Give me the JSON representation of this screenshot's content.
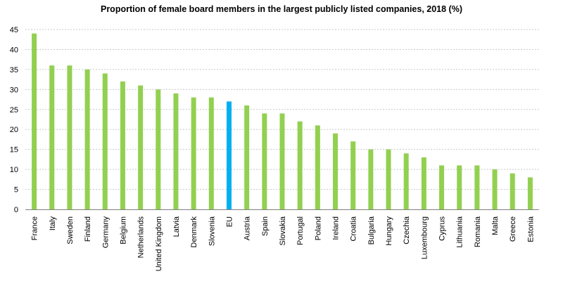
{
  "chart_data": {
    "type": "bar",
    "title": "Proportion of female board members in the largest publicly listed companies, 2018 (%)",
    "xlabel": "",
    "ylabel": "",
    "ylim": [
      0,
      45
    ],
    "yticks": [
      0,
      5,
      10,
      15,
      20,
      25,
      30,
      35,
      40,
      45
    ],
    "grid": true,
    "categories": [
      "France",
      "Italy",
      "Sweden",
      "Finland",
      "Germany",
      "Belgium",
      "Netherlands",
      "United Kingdom",
      "Latvia",
      "Denmark",
      "Slovenia",
      "EU",
      "Austria",
      "Spain",
      "Slovakia",
      "Portugal",
      "Poland",
      "Ireland",
      "Croatia",
      "Bulgaria",
      "Hungary",
      "Czechia",
      "Luxembourg",
      "Cyprus",
      "Lithuania",
      "Romania",
      "Malta",
      "Greece",
      "Estonia"
    ],
    "values": [
      44,
      36,
      36,
      35,
      34,
      32,
      31,
      30,
      29,
      28,
      28,
      27,
      26,
      24,
      24,
      22,
      21,
      19,
      17,
      15,
      15,
      14,
      13,
      11,
      11,
      11,
      10,
      9,
      8
    ],
    "highlight": "EU",
    "colors": {
      "bar": "#92d050",
      "highlight": "#00b0f0",
      "grid": "#c8c8c8",
      "axis": "#808080"
    }
  }
}
